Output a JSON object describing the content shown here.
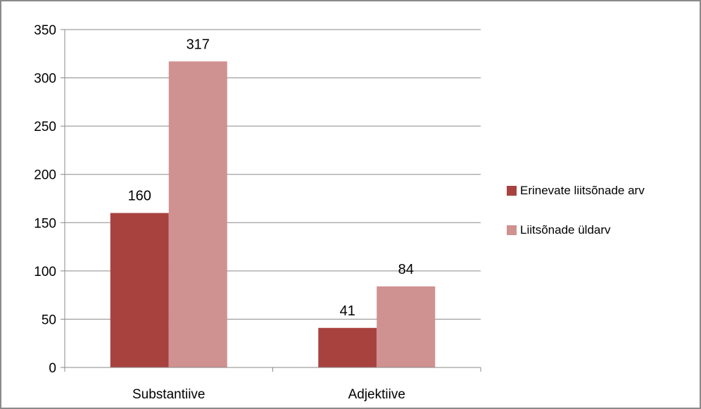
{
  "chart_data": {
    "type": "bar",
    "categories": [
      "Substantiive",
      "Adjektiive"
    ],
    "series": [
      {
        "name": "Erinevate liitsõnade arv",
        "values": [
          160,
          41
        ],
        "color": "#a8423f"
      },
      {
        "name": "Liitsõnade üldarv",
        "values": [
          317,
          84
        ],
        "color": "#d09191"
      }
    ],
    "ylim": [
      0,
      350
    ],
    "yticks": [
      0,
      50,
      100,
      150,
      200,
      250,
      300,
      350
    ],
    "grid": true,
    "legend_position": "right",
    "data_labels": true
  }
}
